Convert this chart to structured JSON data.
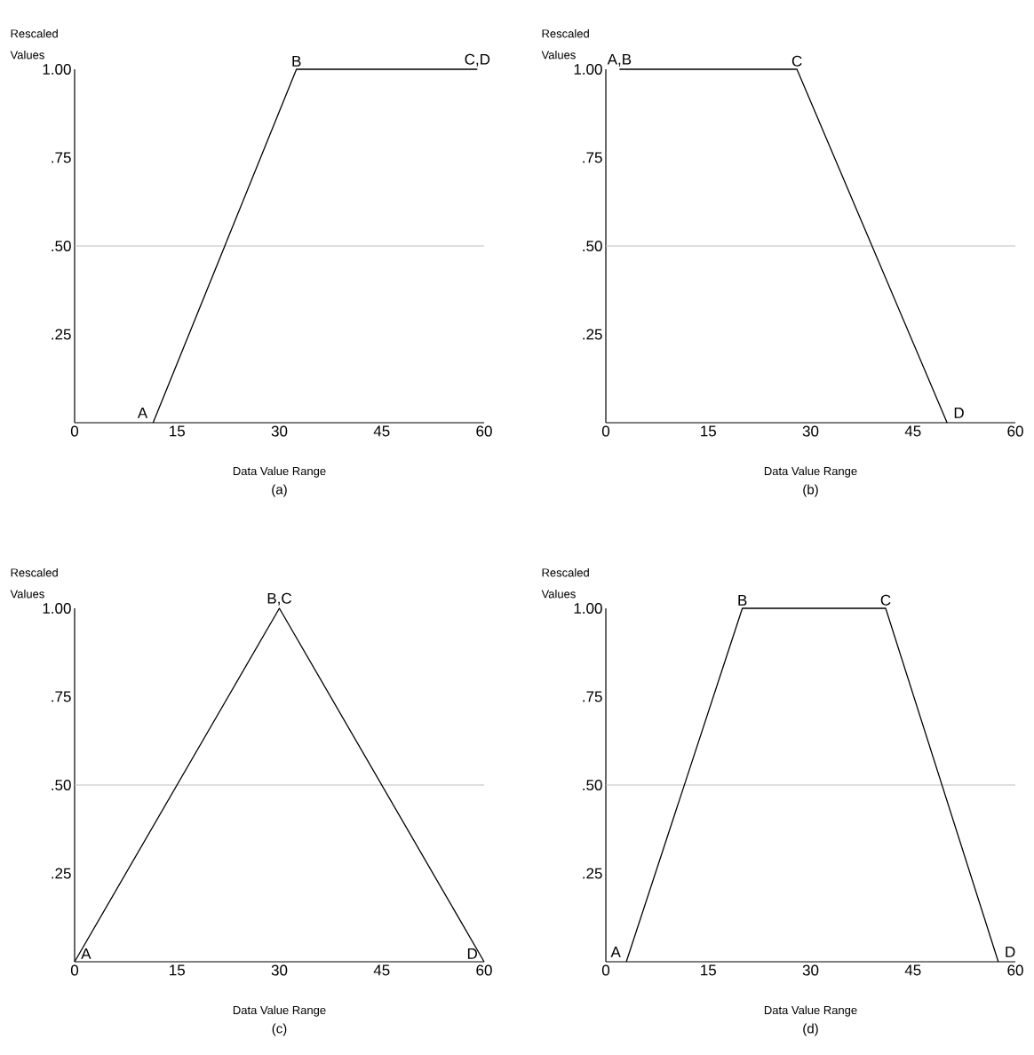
{
  "chart_data": [
    {
      "type": "line",
      "title": "(a)",
      "xlabel": "Data Value Range",
      "ylabel": "Rescaled Values",
      "xlim": [
        0,
        60
      ],
      "ylim": [
        0,
        1
      ],
      "xticks": [
        0,
        15,
        30,
        45,
        60
      ],
      "yticks": [
        {
          "value": 0.25,
          "label": ".25"
        },
        {
          "value": 0.5,
          "label": ".50"
        },
        {
          "value": 0.75,
          "label": ".75"
        },
        {
          "value": 1,
          "label": "1.00"
        }
      ],
      "series": [
        {
          "color": "#000000",
          "x": [
            11.5,
            32.5,
            59
          ],
          "values": [
            0,
            1,
            1
          ]
        }
      ],
      "ref_lines": [
        {
          "axis": "y",
          "value": 0.5,
          "color": "#c0c0c0"
        }
      ],
      "annotations": [
        {
          "text": "A",
          "x": 11.5,
          "y": 0
        },
        {
          "text": "B",
          "x": 32.5,
          "y": 1
        },
        {
          "text": "C,D",
          "x": 59,
          "y": 1
        }
      ]
    },
    {
      "type": "line",
      "title": "(b)",
      "xlabel": "Data Value Range",
      "ylabel": "Rescaled Values",
      "xlim": [
        0,
        60
      ],
      "ylim": [
        0,
        1
      ],
      "xticks": [
        0,
        15,
        30,
        45,
        60
      ],
      "yticks": [
        {
          "value": 0.25,
          "label": ".25"
        },
        {
          "value": 0.5,
          "label": ".50"
        },
        {
          "value": 0.75,
          "label": ".75"
        },
        {
          "value": 1,
          "label": "1.00"
        }
      ],
      "series": [
        {
          "color": "#000000",
          "x": [
            2,
            28,
            50
          ],
          "values": [
            1,
            1,
            0
          ]
        }
      ],
      "ref_lines": [
        {
          "axis": "y",
          "value": 0.5,
          "color": "#c0c0c0"
        }
      ],
      "annotations": [
        {
          "text": "A,B",
          "x": 2,
          "y": 1
        },
        {
          "text": "C",
          "x": 28,
          "y": 1
        },
        {
          "text": "D",
          "x": 50,
          "y": 0
        }
      ]
    },
    {
      "type": "line",
      "title": "(c)",
      "xlabel": "Data Value Range",
      "ylabel": "Rescaled Values",
      "xlim": [
        0,
        60
      ],
      "ylim": [
        0,
        1
      ],
      "xticks": [
        0,
        15,
        30,
        45,
        60
      ],
      "yticks": [
        {
          "value": 0.25,
          "label": ".25"
        },
        {
          "value": 0.5,
          "label": ".50"
        },
        {
          "value": 0.75,
          "label": ".75"
        },
        {
          "value": 1,
          "label": "1.00"
        }
      ],
      "series": [
        {
          "color": "#000000",
          "x": [
            0,
            30,
            60
          ],
          "values": [
            0,
            1,
            0
          ]
        }
      ],
      "ref_lines": [
        {
          "axis": "y",
          "value": 0.5,
          "color": "#c0c0c0"
        }
      ],
      "annotations": [
        {
          "text": "A",
          "x": 0,
          "y": 0
        },
        {
          "text": "B,C",
          "x": 30,
          "y": 1
        },
        {
          "text": "D",
          "x": 60,
          "y": 0
        }
      ]
    },
    {
      "type": "line",
      "title": "(d)",
      "xlabel": "Data Value Range",
      "ylabel": "Rescaled Values",
      "xlim": [
        0,
        60
      ],
      "ylim": [
        0,
        1
      ],
      "xticks": [
        0,
        15,
        30,
        45,
        60
      ],
      "yticks": [
        {
          "value": 0.25,
          "label": ".25"
        },
        {
          "value": 0.5,
          "label": ".50"
        },
        {
          "value": 0.75,
          "label": ".75"
        },
        {
          "value": 1,
          "label": "1.00"
        }
      ],
      "series": [
        {
          "color": "#000000",
          "x": [
            3,
            20,
            41,
            57.5
          ],
          "values": [
            0,
            1,
            1,
            0
          ]
        }
      ],
      "ref_lines": [
        {
          "axis": "y",
          "value": 0.5,
          "color": "#c0c0c0"
        }
      ],
      "annotations": [
        {
          "text": "A",
          "x": 3,
          "y": 0
        },
        {
          "text": "B",
          "x": 20,
          "y": 1
        },
        {
          "text": "C",
          "x": 41,
          "y": 1
        },
        {
          "text": "D",
          "x": 57.5,
          "y": 0
        }
      ]
    }
  ]
}
